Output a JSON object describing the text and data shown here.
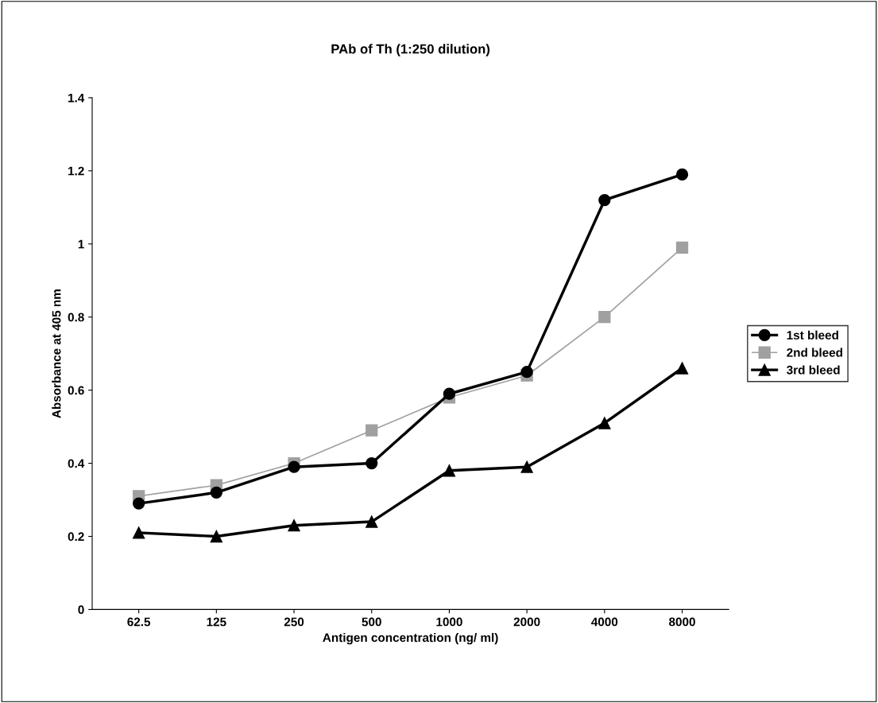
{
  "chart_data": {
    "type": "line",
    "title": "PAb of Th (1:250 dilution)",
    "xlabel": "Antigen concentration (ng/ ml)",
    "ylabel": "Absorbance at 405 nm",
    "categories": [
      "62.5",
      "125",
      "250",
      "500",
      "1000",
      "2000",
      "4000",
      "8000"
    ],
    "series": [
      {
        "name": "1st bleed",
        "color": "#000000",
        "marker": "circle",
        "values": [
          0.29,
          0.32,
          0.39,
          0.4,
          0.59,
          0.65,
          1.12,
          1.19
        ]
      },
      {
        "name": "2nd bleed",
        "color": "#a0a0a0",
        "marker": "square",
        "values": [
          0.31,
          0.34,
          0.4,
          0.49,
          0.58,
          0.64,
          0.8,
          0.99
        ]
      },
      {
        "name": "3rd bleed",
        "color": "#000000",
        "marker": "triangle",
        "values": [
          0.21,
          0.2,
          0.23,
          0.24,
          0.38,
          0.39,
          0.51,
          0.66
        ]
      }
    ],
    "ylim": [
      0,
      1.4
    ],
    "yticks": [
      0,
      0.2,
      0.4,
      0.6,
      0.8,
      1,
      1.2,
      1.4
    ],
    "grid": false,
    "legend": "right",
    "line_style": "solid"
  }
}
